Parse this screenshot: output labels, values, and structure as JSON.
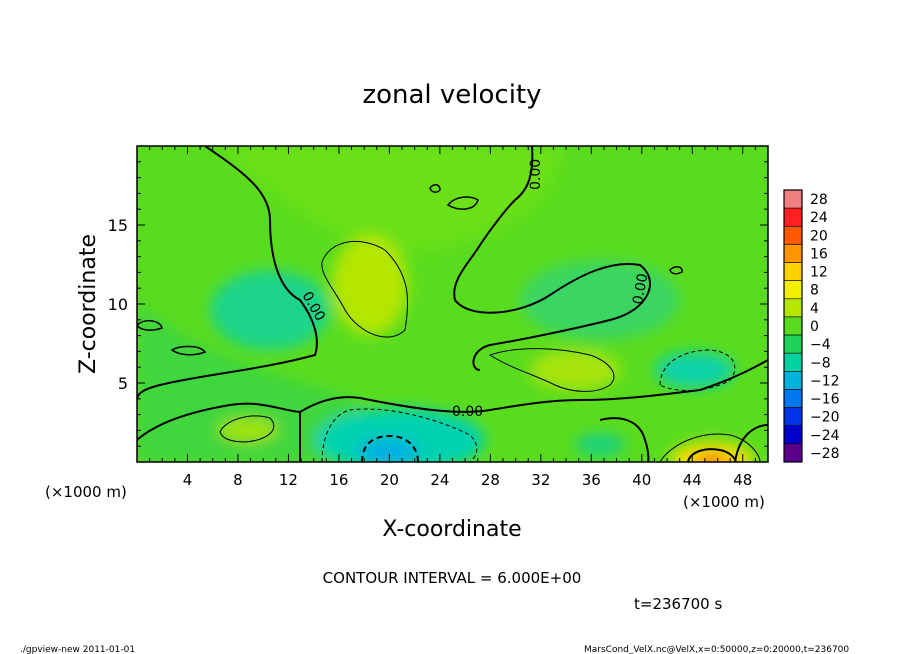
{
  "chart_data": {
    "type": "heatmap",
    "title": "zonal velocity",
    "xlabel": "X-coordinate",
    "ylabel": "Z-coordinate",
    "x_unit_label": "(×1000 m)",
    "z_unit_label": "(×1000 m)",
    "xlim": [
      0,
      50
    ],
    "ylim": [
      0,
      20
    ],
    "x_ticks": [
      4,
      8,
      12,
      16,
      20,
      24,
      28,
      32,
      36,
      40,
      44,
      48
    ],
    "y_ticks": [
      5,
      10,
      15
    ],
    "colorbar": {
      "levels": [
        28,
        24,
        20,
        16,
        12,
        8,
        4,
        0,
        -4,
        -8,
        -12,
        -16,
        -20,
        -24,
        -28
      ],
      "colors": [
        "#f08080",
        "#ff2020",
        "#ff5a00",
        "#ff9600",
        "#ffd200",
        "#f0f000",
        "#b4e600",
        "#5adc1e",
        "#1ed25a",
        "#00d2a0",
        "#00b4dc",
        "#0078f0",
        "#0032e6",
        "#0000c8",
        "#5a008c"
      ]
    },
    "contour_labels": [
      "0.00",
      "0.00",
      "0.00",
      "0.00"
    ],
    "contour_interval_text": "CONTOUR INTERVAL = 6.000E+00",
    "time_text": "t=236700 s",
    "footer_left": "./gpview-new  2011-01-01",
    "footer_right": "MarsCond_VelX.nc@VelX,x=0:50000,z=0:20000,t=236700"
  }
}
